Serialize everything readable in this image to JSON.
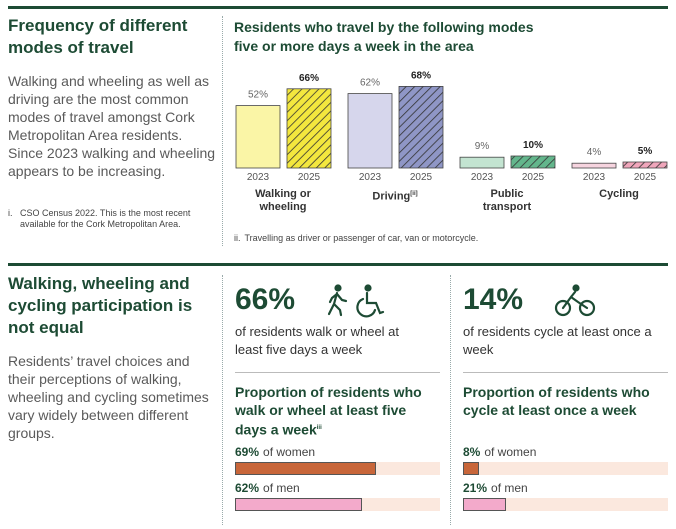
{
  "section1": {
    "title": "Frequency of different modes of travel",
    "body": "Walking and wheeling as well as driving are the most common modes of travel amongst Cork Metropolitan Area residents. Since 2023 walking and wheeling appears to be increasing.",
    "footnote": {
      "marker": "i.",
      "text": "CSO Census 2022. This is the most recent available for the Cork Metropolitan Area."
    }
  },
  "section2": {
    "title": "Walking, wheeling and cycling participation is not equal",
    "body": "Residents’ travel choices and their perceptions of walking, wheeling and cycling sometimes vary widely between different groups.",
    "stats": [
      {
        "value": "66%",
        "caption": "of residents walk or wheel at least five days a week"
      },
      {
        "value": "14%",
        "caption": "of residents cycle at least once a week"
      }
    ]
  },
  "chart_data": [
    {
      "type": "bar",
      "title": "Residents who travel by the following modes five or more days a week in the area",
      "categories": [
        "Walking or wheeling",
        "Driving",
        "Public transport",
        "Cycling"
      ],
      "category_markers": [
        null,
        "ii",
        null,
        null
      ],
      "series": [
        {
          "name": "2023",
          "values": [
            52,
            62,
            9,
            4
          ],
          "value_labels": [
            "52%",
            "62%",
            "9%",
            "4%"
          ],
          "colors": [
            "#faf5a6",
            "#d6d6ec",
            "#c3e4d1",
            "#f6d4df"
          ]
        },
        {
          "name": "2025",
          "values": [
            66,
            68,
            10,
            5
          ],
          "value_labels": [
            "66%",
            "68%",
            "10%",
            "5%"
          ],
          "colors": [
            "#f3e73e",
            "#8f96c6",
            "#63b68c",
            "#f0a6bb"
          ],
          "hatched": true
        }
      ],
      "footnote": {
        "marker": "ii.",
        "text": "Travelling as driver or passenger of car, van or motorcycle."
      }
    },
    {
      "type": "hbar",
      "title": "Proportion of residents who walk or wheel at least five days a week",
      "title_marker": "iii",
      "categories": [
        "of women",
        "of men"
      ],
      "values": [
        69,
        62
      ],
      "value_labels": [
        "69%",
        "62%"
      ],
      "colors": [
        "#c8663a",
        "#f3aacb"
      ],
      "track_color": "#fbe8de",
      "xlim": [
        0,
        100
      ]
    },
    {
      "type": "hbar",
      "title": "Proportion of residents who cycle at least once a week",
      "categories": [
        "of women",
        "of men"
      ],
      "values": [
        8,
        21
      ],
      "value_labels": [
        "8%",
        "21%"
      ],
      "colors": [
        "#c8663a",
        "#f3aacb"
      ],
      "track_color": "#fbe8de",
      "xlim": [
        0,
        100
      ]
    }
  ]
}
